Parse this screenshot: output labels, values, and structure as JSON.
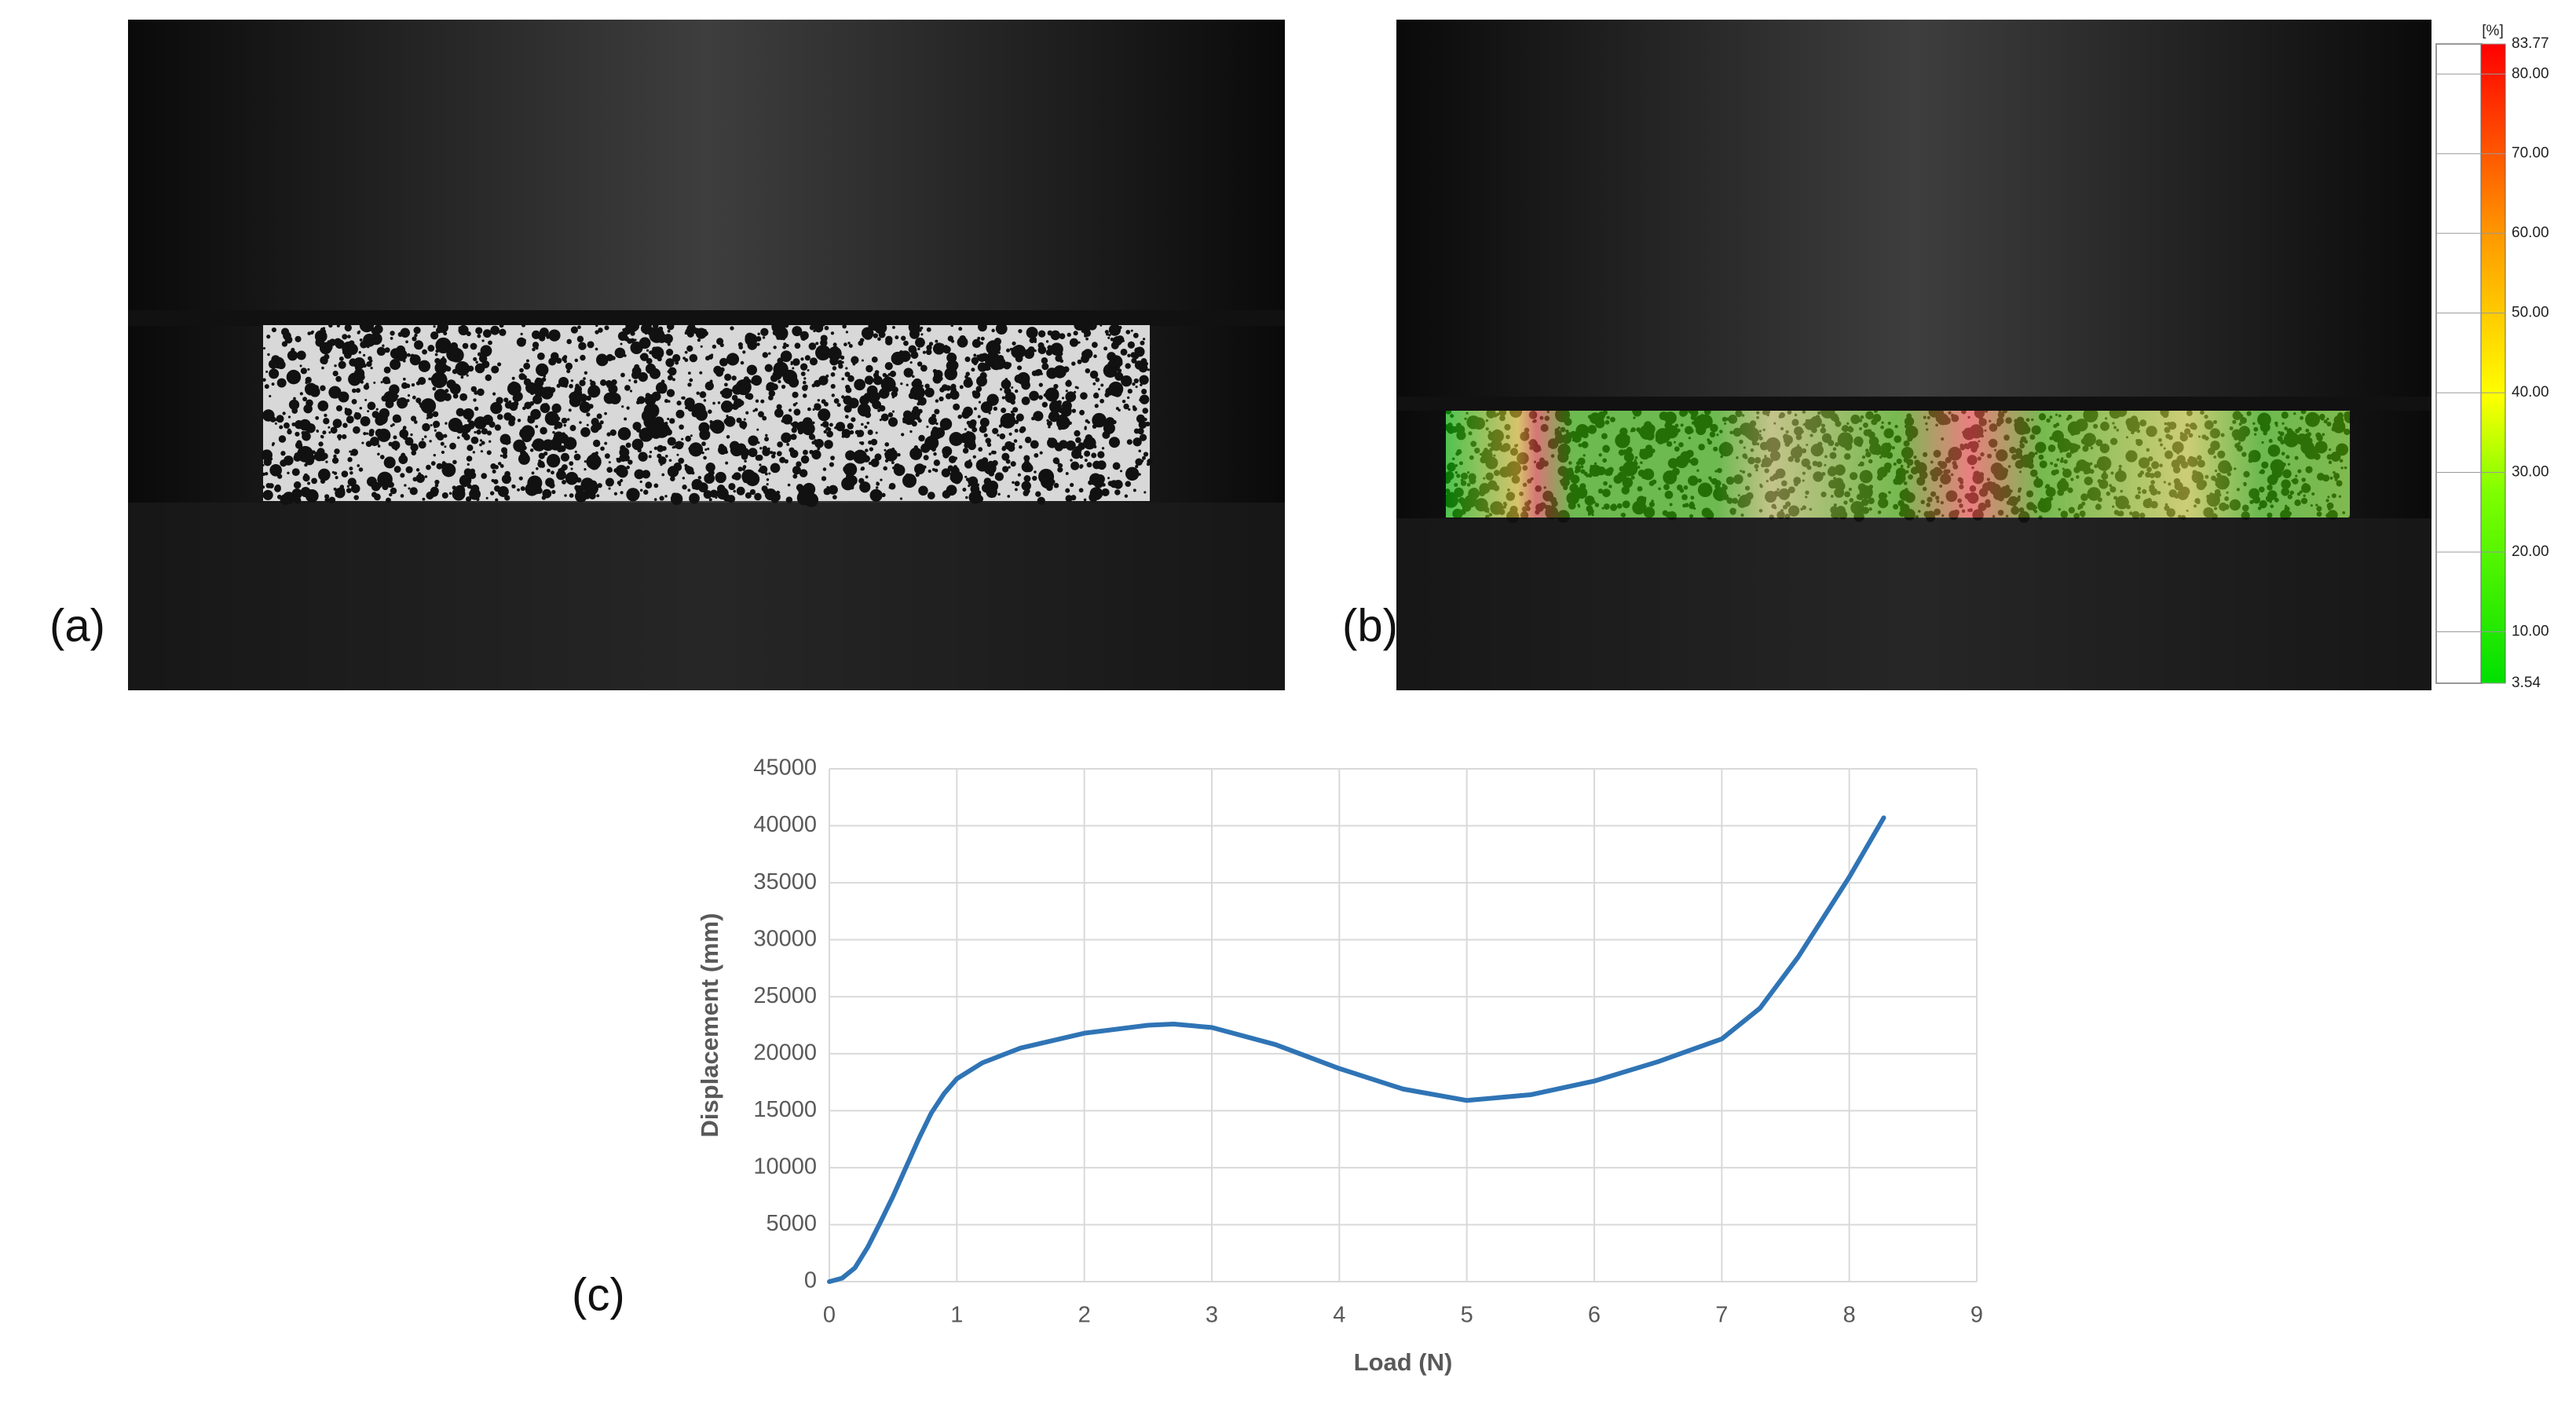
{
  "panels": [
    "(a)",
    "(b)",
    "(c)"
  ],
  "colorbar": {
    "unit": "[%]",
    "range": [
      3.54,
      83.77
    ],
    "ticks": [
      {
        "value": 83.77,
        "label": "83.77"
      },
      {
        "value": 80,
        "label": "80.00"
      },
      {
        "value": 70,
        "label": "70.00"
      },
      {
        "value": 60,
        "label": "60.00"
      },
      {
        "value": 50,
        "label": "50.00"
      },
      {
        "value": 40,
        "label": "40.00"
      },
      {
        "value": 30,
        "label": "30.00"
      },
      {
        "value": 20,
        "label": "20.00"
      },
      {
        "value": 10,
        "label": "10.00"
      },
      {
        "value": 3.54,
        "label": "3.54"
      }
    ]
  },
  "chart_data": {
    "type": "line",
    "x_label": "Load (N)",
    "y_label": "Displacement (mm)",
    "x": [
      0,
      0.1,
      0.2,
      0.3,
      0.4,
      0.5,
      0.6,
      0.7,
      0.8,
      0.9,
      1.0,
      1.2,
      1.5,
      2,
      2.5,
      2.7,
      3,
      3.5,
      4,
      4.5,
      5,
      5.5,
      6,
      6.5,
      7,
      7.3,
      7.6,
      8,
      8.27
    ],
    "series": [
      {
        "color": "#2f74b5",
        "values": [
          0,
          300,
          1200,
          3000,
          5200,
          7500,
          10000,
          12500,
          14800,
          16500,
          17800,
          19200,
          20500,
          21800,
          22500,
          22600,
          22300,
          20800,
          18700,
          16900,
          15900,
          16400,
          17600,
          19300,
          21300,
          24000,
          28500,
          35500,
          40700
        ]
      }
    ],
    "xlim": [
      0,
      9
    ],
    "xticks": [
      0,
      1,
      2,
      3,
      4,
      5,
      6,
      7,
      8,
      9
    ],
    "ylim": [
      0,
      45000
    ],
    "yticks": [
      0,
      5000,
      10000,
      15000,
      20000,
      25000,
      30000,
      35000,
      40000,
      45000
    ],
    "grid": true
  }
}
